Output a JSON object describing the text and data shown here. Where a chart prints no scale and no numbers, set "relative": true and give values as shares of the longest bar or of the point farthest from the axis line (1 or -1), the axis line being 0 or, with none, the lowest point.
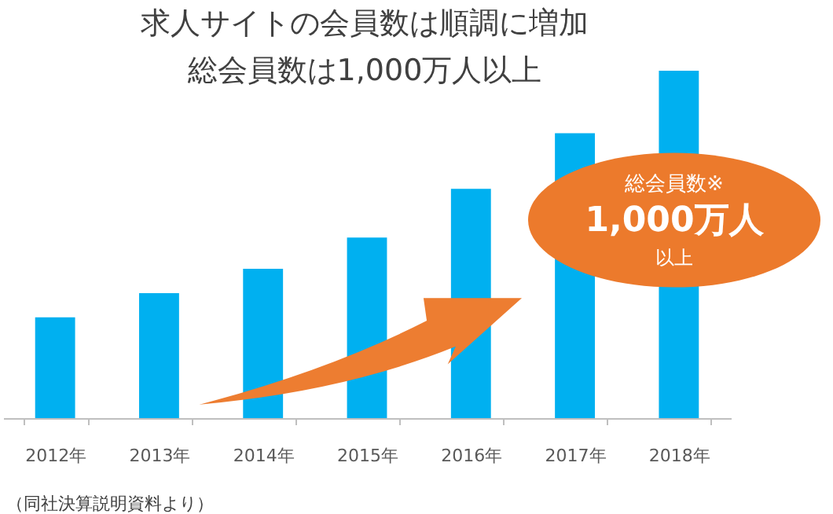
{
  "chart_data": {
    "type": "bar",
    "title": "求人サイトの会員数は順調に増加",
    "subtitle": "総会員数は1,000万人以上",
    "categories": [
      "2012年",
      "2013年",
      "2014年",
      "2015年",
      "2016年",
      "2017年",
      "2018年"
    ],
    "values": [
      0.29,
      0.36,
      0.43,
      0.52,
      0.66,
      0.82,
      1
    ],
    "color": "#00b0f0",
    "relative": true,
    "grid": false,
    "annotations": [
      "総会員数※",
      "1,000万人",
      "以上",
      "（同社決算説明資料より）"
    ]
  }
}
